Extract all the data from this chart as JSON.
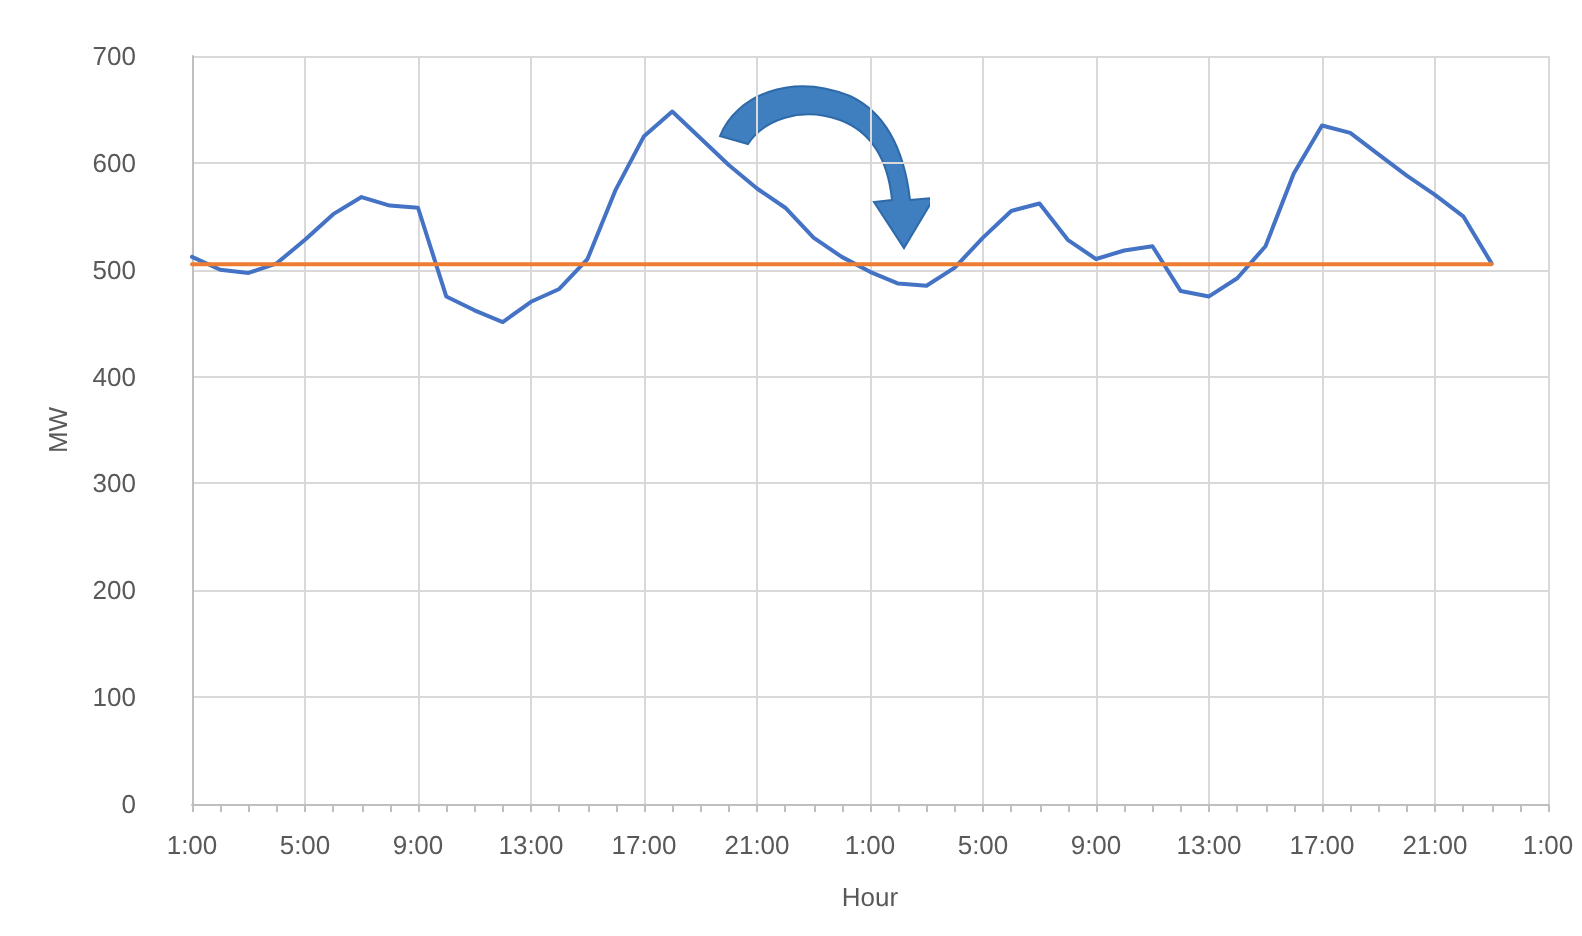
{
  "chart_data": {
    "type": "line",
    "xlabel": "Hour",
    "ylabel": "MW",
    "categories": [
      "1:00",
      null,
      null,
      null,
      "5:00",
      null,
      null,
      null,
      "9:00",
      null,
      null,
      null,
      "13:00",
      null,
      null,
      null,
      "17:00",
      null,
      null,
      null,
      "21:00",
      null,
      null,
      null,
      "1:00",
      null,
      null,
      null,
      "5:00",
      null,
      null,
      null,
      "9:00",
      null,
      null,
      null,
      "13:00",
      null,
      null,
      null,
      "17:00",
      null,
      null,
      null,
      "21:00",
      null,
      null,
      null,
      "1:00"
    ],
    "series": [
      {
        "color": "#4472c4",
        "values": [
          512,
          500,
          497,
          506,
          528,
          552,
          568,
          560,
          558,
          475,
          462,
          451,
          470,
          482,
          510,
          575,
          625,
          648,
          623,
          598,
          576,
          558,
          530,
          512,
          498,
          487,
          485,
          502,
          530,
          555,
          562,
          528,
          510,
          518,
          522,
          480,
          475,
          492,
          522,
          590,
          635,
          628,
          608,
          588,
          570,
          550,
          506,
          null,
          null
        ]
      },
      {
        "color": "#ed7d31",
        "values": [
          505,
          505,
          505,
          505,
          505,
          505,
          505,
          505,
          505,
          505,
          505,
          505,
          505,
          505,
          505,
          505,
          505,
          505,
          505,
          505,
          505,
          505,
          505,
          505,
          505,
          505,
          505,
          505,
          505,
          505,
          505,
          505,
          505,
          505,
          505,
          505,
          505,
          505,
          505,
          505,
          505,
          505,
          505,
          505,
          505,
          505,
          505,
          null,
          null
        ]
      }
    ],
    "ylim": [
      0,
      700
    ],
    "yticks": [
      0,
      100,
      200,
      300,
      400,
      500,
      600,
      700
    ],
    "grid": true,
    "marker": "none",
    "line_style": "solid"
  }
}
